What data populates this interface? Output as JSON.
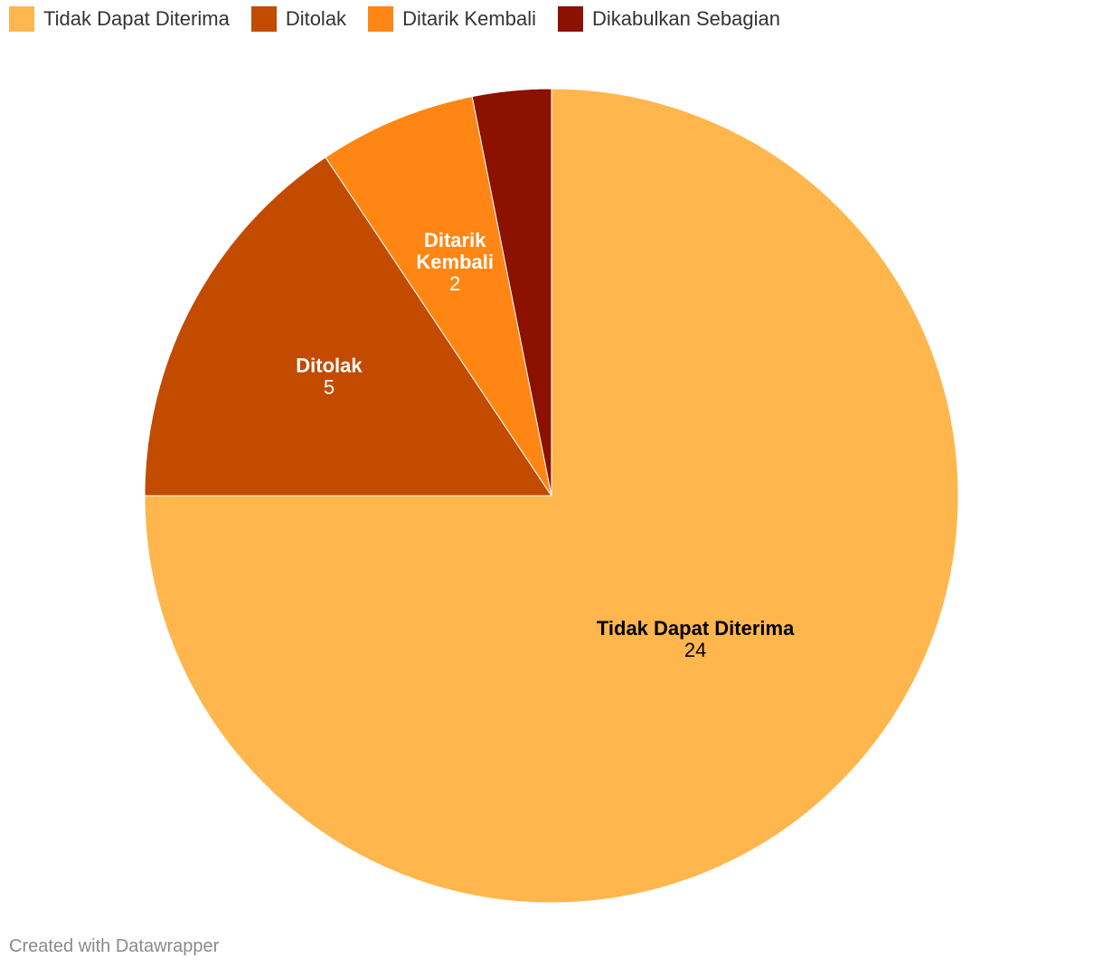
{
  "chart_data": {
    "type": "pie",
    "title": "",
    "slices": [
      {
        "label": "Tidak Dapat Diterima",
        "value": 24,
        "color": "#ffb64c",
        "label_color": "#000000",
        "label_lines": [
          "Tidak Dapat Diterima"
        ]
      },
      {
        "label": "Ditolak",
        "value": 5,
        "color": "#c24b00",
        "label_color": "#ffffff",
        "label_lines": [
          "Ditolak"
        ]
      },
      {
        "label": "Ditarik Kembali",
        "value": 2,
        "color": "#ff8614",
        "label_color": "#ffffff",
        "label_lines": [
          "Ditarik",
          "Kembali"
        ]
      },
      {
        "label": "Dikabulkan Sebagian",
        "value": 1,
        "color": "#8b1100",
        "label_color": "#ffffff",
        "label_lines": [],
        "show_label": false
      }
    ],
    "legend_position": "top-left",
    "start_angle": "12 o'clock",
    "direction": "clockwise"
  },
  "legend": {
    "items": [
      {
        "label": "Tidak Dapat Diterima",
        "color": "#ffb64c"
      },
      {
        "label": "Ditolak",
        "color": "#c24b00"
      },
      {
        "label": "Ditarik Kembali",
        "color": "#ff8614"
      },
      {
        "label": "Dikabulkan Sebagian",
        "color": "#8b1100"
      }
    ]
  },
  "footer": {
    "credit": "Created with Datawrapper"
  }
}
